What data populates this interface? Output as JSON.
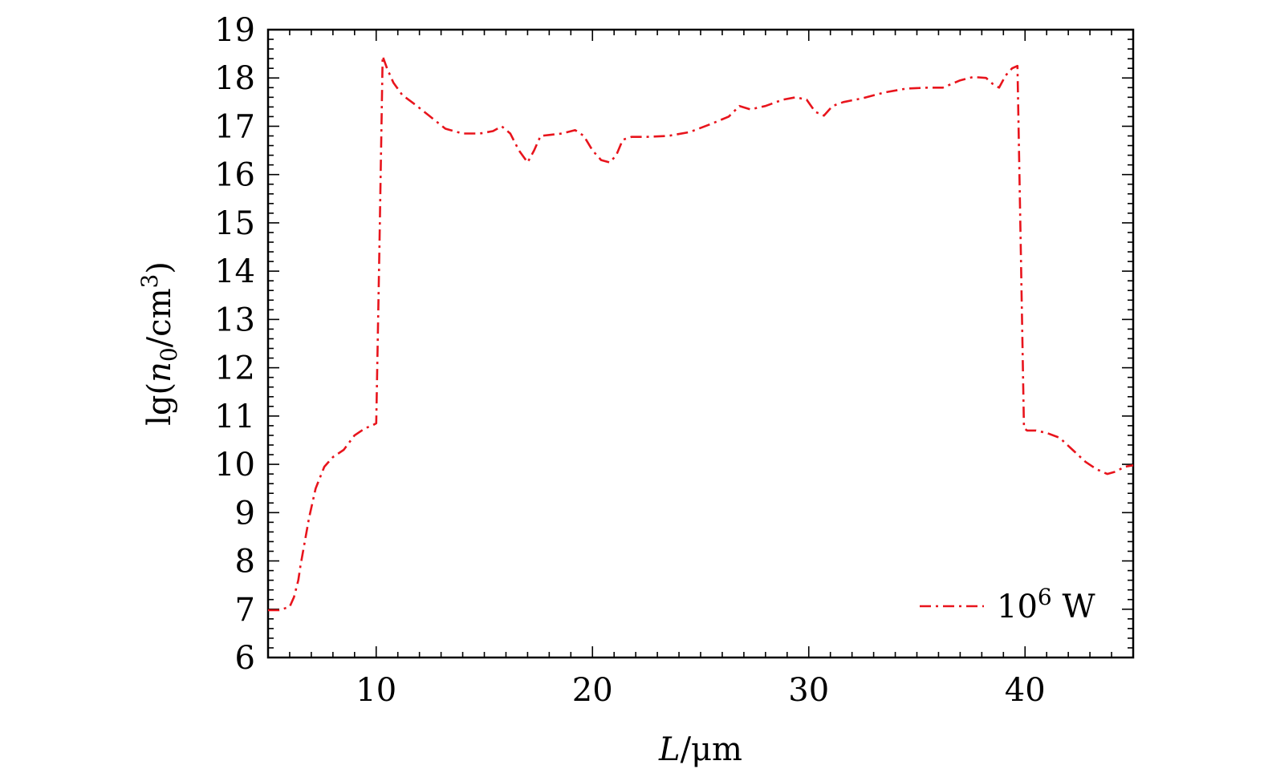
{
  "chart_data": {
    "type": "line",
    "title": "",
    "xlabel": {
      "var": "L",
      "unit": "μm"
    },
    "ylabel": {
      "prefix": "lg(",
      "var": "n",
      "sub": "0",
      "unit": "/cm",
      "sup": "3",
      "suffix": ")"
    },
    "xlim": [
      5,
      45
    ],
    "ylim": [
      6,
      19
    ],
    "xticks": [
      10,
      20,
      30,
      40
    ],
    "yticks": [
      6,
      7,
      8,
      9,
      10,
      11,
      12,
      13,
      14,
      15,
      16,
      17,
      18,
      19
    ],
    "legend": {
      "base": "10",
      "sup": "6",
      "unit": "W",
      "position": "bottom-right"
    },
    "series": [
      {
        "name": "10^6 W",
        "color": "#e8141c",
        "style": "dash-dot",
        "x": [
          5.0,
          5.5,
          6.0,
          6.2,
          6.4,
          6.5,
          6.7,
          6.9,
          7.2,
          7.6,
          8.0,
          8.5,
          9.0,
          9.5,
          9.8,
          10.0,
          10.15,
          10.3,
          10.5,
          10.8,
          11.2,
          11.8,
          12.5,
          13.2,
          14.0,
          14.8,
          15.4,
          15.8,
          16.2,
          16.6,
          17.0,
          17.3,
          17.6,
          18.0,
          18.6,
          19.2,
          19.6,
          20.0,
          20.4,
          20.8,
          21.1,
          21.4,
          21.8,
          22.5,
          23.5,
          24.5,
          25.5,
          26.3,
          26.8,
          27.3,
          28.0,
          28.8,
          29.4,
          29.9,
          30.3,
          30.7,
          31.1,
          31.6,
          32.5,
          33.5,
          34.5,
          35.5,
          36.2,
          37.0,
          37.6,
          38.2,
          38.5,
          38.8,
          39.1,
          39.4,
          39.65,
          39.8,
          39.95,
          40.1,
          40.5,
          41.0,
          41.6,
          42.2,
          42.8,
          43.3,
          43.8,
          44.2,
          44.6,
          45.0
        ],
        "y": [
          6.98,
          6.98,
          7.05,
          7.25,
          7.6,
          7.9,
          8.4,
          8.9,
          9.5,
          9.95,
          10.15,
          10.3,
          10.6,
          10.75,
          10.8,
          10.85,
          14.5,
          18.45,
          18.2,
          17.9,
          17.65,
          17.45,
          17.2,
          16.95,
          16.85,
          16.85,
          16.9,
          17.0,
          16.85,
          16.5,
          16.25,
          16.5,
          16.8,
          16.82,
          16.85,
          16.92,
          16.8,
          16.5,
          16.3,
          16.25,
          16.4,
          16.72,
          16.78,
          16.78,
          16.8,
          16.88,
          17.05,
          17.2,
          17.42,
          17.35,
          17.42,
          17.55,
          17.6,
          17.55,
          17.3,
          17.22,
          17.42,
          17.5,
          17.58,
          17.7,
          17.78,
          17.8,
          17.8,
          17.95,
          18.02,
          18.0,
          17.88,
          17.8,
          18.05,
          18.2,
          18.25,
          14.5,
          10.75,
          10.7,
          10.7,
          10.65,
          10.55,
          10.3,
          10.05,
          9.9,
          9.8,
          9.85,
          9.95,
          9.98
        ]
      }
    ]
  }
}
